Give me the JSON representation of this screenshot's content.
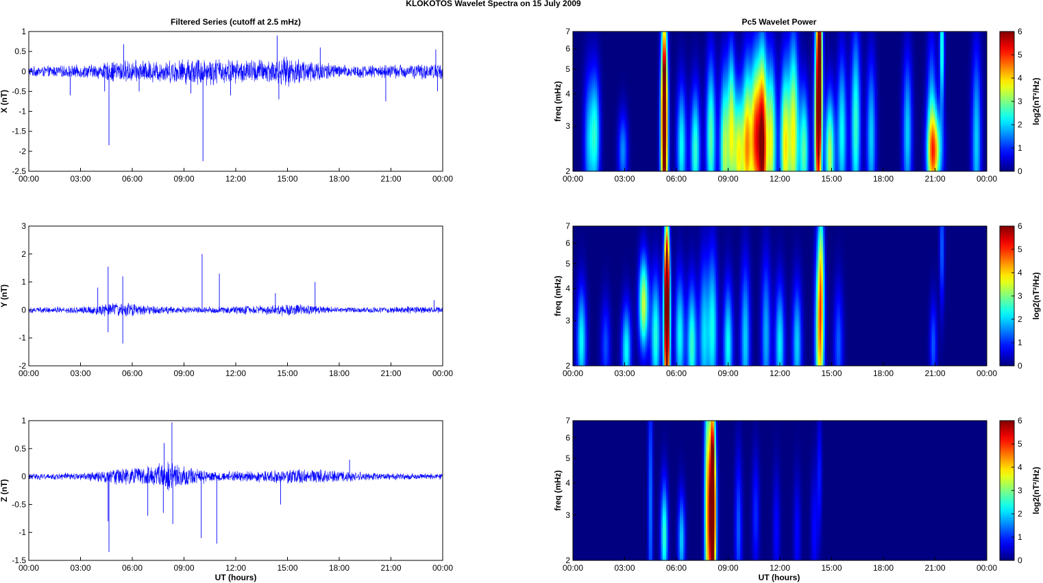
{
  "figure": {
    "title": "KLOKOTOS Wavelet Spectra on 15 July      2009",
    "left_title": "Filtered Series (cutoff at 2.5 mHz)",
    "right_title": "Pc5 Wavelet Power",
    "xlabel": "UT (hours)"
  },
  "colors": {
    "series_line": "#0000ff",
    "axis": "#000000",
    "colormap": "jet"
  },
  "chart_data": [
    {
      "type": "line",
      "name": "X (nT)",
      "ylabel": "X (nT)",
      "ylim": [
        -2.5,
        1
      ],
      "yticks": [
        "1",
        "0.5",
        "0",
        "-0.5",
        "-1",
        "-1.5",
        "-2",
        "-2.5"
      ],
      "yticks_values": [
        1,
        0.5,
        0,
        -0.5,
        -1,
        -1.5,
        -2,
        -2.5
      ],
      "xlim": [
        0,
        24
      ],
      "xticks": [
        "00:00",
        "03:00",
        "06:00",
        "09:00",
        "12:00",
        "15:00",
        "18:00",
        "21:00",
        "00:00"
      ],
      "noise_envelope": [
        [
          0,
          0.14
        ],
        [
          2,
          0.16
        ],
        [
          4,
          0.2
        ],
        [
          5,
          0.3
        ],
        [
          6,
          0.3
        ],
        [
          8,
          0.3
        ],
        [
          10,
          0.4
        ],
        [
          12,
          0.32
        ],
        [
          14,
          0.35
        ],
        [
          15,
          0.4
        ],
        [
          17,
          0.3
        ],
        [
          18,
          0.18
        ],
        [
          20,
          0.18
        ],
        [
          22,
          0.2
        ],
        [
          24,
          0.22
        ]
      ],
      "spikes": [
        [
          4.65,
          -1.85
        ],
        [
          5.5,
          0.68
        ],
        [
          10.1,
          -2.25
        ],
        [
          14.4,
          0.9
        ],
        [
          14.5,
          -0.7
        ],
        [
          4.4,
          -0.5
        ],
        [
          6.4,
          -0.5
        ],
        [
          16.9,
          0.6
        ],
        [
          20.7,
          -0.75
        ],
        [
          23.6,
          0.55
        ],
        [
          23.7,
          -0.5
        ],
        [
          9.4,
          -0.55
        ],
        [
          11.7,
          -0.6
        ],
        [
          2.4,
          -0.6
        ]
      ]
    },
    {
      "type": "line",
      "name": "Y (nT)",
      "ylabel": "Y (nT)",
      "ylim": [
        -2,
        3
      ],
      "yticks": [
        "3",
        "2",
        "1",
        "0",
        "-1",
        "-2"
      ],
      "yticks_values": [
        3,
        2,
        1,
        0,
        -1,
        -2
      ],
      "xlim": [
        0,
        24
      ],
      "xticks": [
        "00:00",
        "03:00",
        "06:00",
        "09:00",
        "12:00",
        "15:00",
        "18:00",
        "21:00",
        "00:00"
      ],
      "noise_envelope": [
        [
          0,
          0.12
        ],
        [
          3,
          0.14
        ],
        [
          4,
          0.2
        ],
        [
          5,
          0.3
        ],
        [
          6,
          0.25
        ],
        [
          8,
          0.15
        ],
        [
          10,
          0.12
        ],
        [
          14,
          0.2
        ],
        [
          15,
          0.25
        ],
        [
          18,
          0.1
        ],
        [
          20,
          0.12
        ],
        [
          22,
          0.14
        ],
        [
          24,
          0.12
        ]
      ],
      "spikes": [
        [
          4.6,
          1.55
        ],
        [
          4.6,
          -0.8
        ],
        [
          5.45,
          1.2
        ],
        [
          5.45,
          -1.2
        ],
        [
          10.05,
          2.0
        ],
        [
          11.05,
          1.3
        ],
        [
          14.3,
          0.6
        ],
        [
          16.6,
          1.0
        ],
        [
          4.0,
          0.8
        ],
        [
          23.5,
          0.35
        ]
      ]
    },
    {
      "type": "line",
      "name": "Z (nT)",
      "ylabel": "Z (nT)",
      "ylim": [
        -1.5,
        1
      ],
      "yticks": [
        "1",
        "0.5",
        "0",
        "-0.5",
        "-1",
        "-1.5"
      ],
      "yticks_values": [
        1,
        0.5,
        0,
        -0.5,
        -1,
        -1.5
      ],
      "xlim": [
        0,
        24
      ],
      "xticks": [
        "00:00",
        "03:00",
        "06:00",
        "09:00",
        "12:00",
        "15:00",
        "18:00",
        "21:00",
        "00:00"
      ],
      "noise_envelope": [
        [
          0,
          0.06
        ],
        [
          3,
          0.07
        ],
        [
          4,
          0.1
        ],
        [
          5,
          0.15
        ],
        [
          7,
          0.2
        ],
        [
          8,
          0.3
        ],
        [
          9,
          0.2
        ],
        [
          11,
          0.1
        ],
        [
          14,
          0.12
        ],
        [
          15,
          0.15
        ],
        [
          18,
          0.12
        ],
        [
          20,
          0.07
        ],
        [
          24,
          0.06
        ]
      ],
      "spikes": [
        [
          4.65,
          -1.35
        ],
        [
          4.6,
          -0.8
        ],
        [
          7.85,
          0.6
        ],
        [
          8.3,
          0.97
        ],
        [
          8.35,
          -0.85
        ],
        [
          7.8,
          -0.65
        ],
        [
          10.0,
          -1.1
        ],
        [
          10.9,
          -1.2
        ],
        [
          18.6,
          0.3
        ],
        [
          6.9,
          -0.7
        ],
        [
          14.6,
          -0.5
        ]
      ]
    },
    {
      "type": "heatmap",
      "name": "Pc5 Wavelet Power X",
      "ylabel": "freq (mHz)",
      "ylim": [
        2,
        7
      ],
      "yscale": "log",
      "yticks": [
        "2",
        "3",
        "4",
        "5",
        "6",
        "7"
      ],
      "yticks_values": [
        2,
        3,
        4,
        5,
        6,
        7
      ],
      "xlim": [
        0,
        24
      ],
      "xticks": [
        "00:00",
        "03:00",
        "06:00",
        "09:00",
        "12:00",
        "15:00",
        "18:00",
        "21:00",
        "00:00"
      ],
      "clim": [
        0,
        6
      ],
      "colorbar_label": "log2(nT²/Hz)",
      "colorbar_ticks": [
        "6",
        "5",
        "4",
        "3",
        "2",
        "1",
        "0"
      ],
      "blobs": [
        [
          0.9,
          2.6,
          1.6,
          0.2,
          0.45
        ],
        [
          1.3,
          2.8,
          2.3,
          0.2,
          0.4
        ],
        [
          2.9,
          2.4,
          1.6,
          0.2,
          0.25
        ],
        [
          5.3,
          2.6,
          5.5,
          0.15,
          0.7
        ],
        [
          5.3,
          4.2,
          3.2,
          0.1,
          0.5
        ],
        [
          6.3,
          2.5,
          2.3,
          0.2,
          0.4
        ],
        [
          7.1,
          2.4,
          2.6,
          0.2,
          0.4
        ],
        [
          8.0,
          2.7,
          2.8,
          0.2,
          0.5
        ],
        [
          8.8,
          2.4,
          3.3,
          0.2,
          0.5
        ],
        [
          9.2,
          3.0,
          3.0,
          0.15,
          0.5
        ],
        [
          9.6,
          2.3,
          3.6,
          0.2,
          0.4
        ],
        [
          10.1,
          2.5,
          4.2,
          0.2,
          0.5
        ],
        [
          10.6,
          2.7,
          4.6,
          0.2,
          0.5
        ],
        [
          11.0,
          2.5,
          5.6,
          0.18,
          0.6
        ],
        [
          11.5,
          2.6,
          3.6,
          0.2,
          0.5
        ],
        [
          12.3,
          2.5,
          3.8,
          0.2,
          0.5
        ],
        [
          12.8,
          2.8,
          3.6,
          0.2,
          0.6
        ],
        [
          13.4,
          2.4,
          2.8,
          0.2,
          0.4
        ],
        [
          14.2,
          2.7,
          4.6,
          0.15,
          0.7
        ],
        [
          14.3,
          5.5,
          5.2,
          0.12,
          0.6
        ],
        [
          14.9,
          2.3,
          3.3,
          0.2,
          0.4
        ],
        [
          15.6,
          2.8,
          2.3,
          0.2,
          0.5
        ],
        [
          16.4,
          3.0,
          2.6,
          0.2,
          0.6
        ],
        [
          17.3,
          2.7,
          2.0,
          0.2,
          0.5
        ],
        [
          19.4,
          2.8,
          2.0,
          0.2,
          0.5
        ],
        [
          20.8,
          2.6,
          2.3,
          0.2,
          0.6
        ],
        [
          21.0,
          2.4,
          3.3,
          0.3,
          0.25
        ],
        [
          21.4,
          6.0,
          2.6,
          0.1,
          0.4
        ],
        [
          23.4,
          2.6,
          2.0,
          0.2,
          0.6
        ]
      ]
    },
    {
      "type": "heatmap",
      "name": "Pc5 Wavelet Power Y",
      "ylabel": "freq (mHz)",
      "ylim": [
        2,
        7
      ],
      "yscale": "log",
      "yticks": [
        "2",
        "3",
        "4",
        "5",
        "6",
        "7"
      ],
      "yticks_values": [
        2,
        3,
        4,
        5,
        6,
        7
      ],
      "xlim": [
        0,
        24
      ],
      "xticks": [
        "00:00",
        "03:00",
        "06:00",
        "09:00",
        "12:00",
        "15:00",
        "18:00",
        "21:00",
        "00:00"
      ],
      "clim": [
        0,
        6
      ],
      "colorbar_label": "log2(nT²/Hz)",
      "colorbar_ticks": [
        "6",
        "5",
        "4",
        "3",
        "2",
        "1",
        "0"
      ],
      "blobs": [
        [
          0.5,
          2.5,
          2.3,
          0.2,
          0.35
        ],
        [
          1.9,
          2.4,
          1.2,
          0.2,
          0.3
        ],
        [
          3.1,
          2.3,
          2.3,
          0.2,
          0.3
        ],
        [
          4.1,
          3.5,
          3.5,
          0.2,
          0.3
        ],
        [
          4.8,
          2.6,
          2.5,
          0.2,
          0.4
        ],
        [
          5.45,
          2.6,
          6.0,
          0.13,
          0.55
        ],
        [
          5.45,
          4.5,
          4.2,
          0.1,
          0.4
        ],
        [
          6.2,
          2.6,
          2.3,
          0.2,
          0.4
        ],
        [
          6.9,
          2.4,
          2.6,
          0.2,
          0.4
        ],
        [
          7.6,
          2.6,
          2.0,
          0.2,
          0.5
        ],
        [
          8.1,
          2.8,
          2.3,
          0.2,
          0.5
        ],
        [
          9.0,
          2.4,
          2.3,
          0.2,
          0.4
        ],
        [
          10.0,
          2.5,
          2.0,
          0.2,
          0.5
        ],
        [
          11.2,
          2.6,
          1.8,
          0.2,
          0.5
        ],
        [
          12.0,
          2.4,
          2.2,
          0.2,
          0.4
        ],
        [
          13.0,
          2.4,
          2.0,
          0.2,
          0.4
        ],
        [
          14.3,
          2.6,
          3.8,
          0.18,
          0.6
        ],
        [
          14.4,
          4.6,
          2.2,
          0.12,
          0.5
        ],
        [
          15.4,
          2.4,
          1.3,
          0.2,
          0.4
        ],
        [
          20.9,
          2.4,
          1.3,
          0.15,
          0.3
        ],
        [
          21.4,
          5.8,
          1.4,
          0.1,
          0.4
        ]
      ]
    },
    {
      "type": "heatmap",
      "name": "Pc5 Wavelet Power Z",
      "ylabel": "freq (mHz)",
      "ylim": [
        2,
        7
      ],
      "yscale": "log",
      "yticks": [
        "2",
        "3",
        "4",
        "5",
        "6",
        "7"
      ],
      "yticks_values": [
        2,
        3,
        4,
        5,
        6,
        7
      ],
      "xlim": [
        0,
        24
      ],
      "xticks": [
        "00:00",
        "03:00",
        "06:00",
        "09:00",
        "12:00",
        "15:00",
        "18:00",
        "21:00",
        "00:00"
      ],
      "clim": [
        0,
        6
      ],
      "colorbar_label": "log2(nT²/Hz)",
      "colorbar_ticks": [
        "6",
        "5",
        "4",
        "3",
        "2",
        "1",
        "0"
      ],
      "blobs": [
        [
          4.5,
          3.2,
          1.5,
          0.1,
          0.9
        ],
        [
          5.3,
          2.5,
          2.6,
          0.15,
          0.35
        ],
        [
          6.3,
          2.4,
          2.0,
          0.15,
          0.3
        ],
        [
          7.8,
          3.2,
          3.6,
          0.13,
          0.9
        ],
        [
          8.1,
          2.8,
          5.6,
          0.15,
          0.6
        ],
        [
          8.1,
          4.3,
          3.6,
          0.1,
          0.6
        ],
        [
          9.6,
          2.6,
          1.3,
          0.15,
          0.5
        ],
        [
          10.6,
          3.0,
          1.0,
          0.15,
          0.4
        ],
        [
          11.8,
          2.6,
          0.8,
          0.15,
          0.4
        ],
        [
          13.0,
          2.5,
          0.8,
          0.15,
          0.4
        ],
        [
          14.0,
          2.6,
          0.8,
          0.15,
          0.4
        ],
        [
          14.3,
          4.4,
          0.9,
          0.1,
          0.4
        ]
      ]
    }
  ]
}
